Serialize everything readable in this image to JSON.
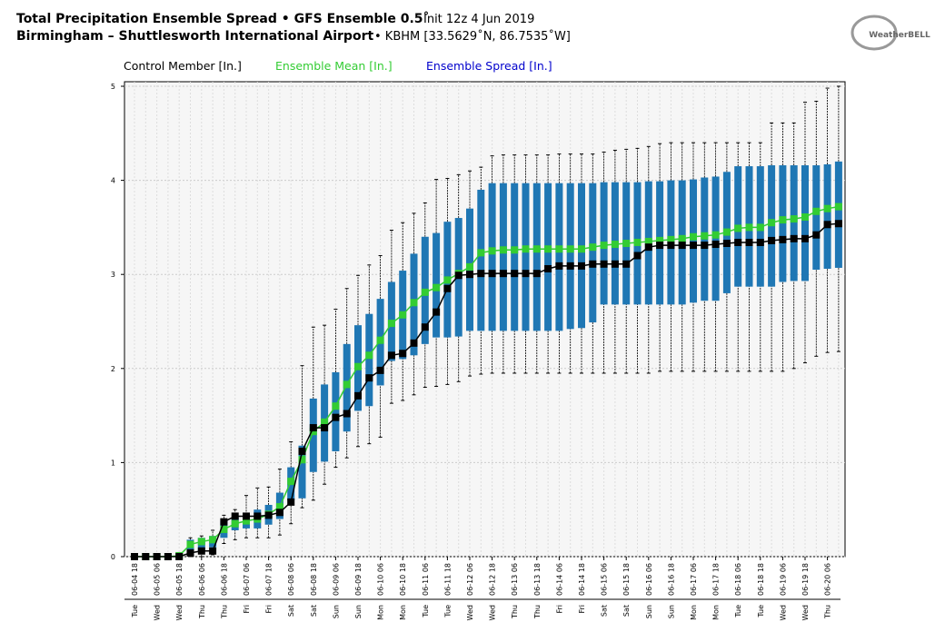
{
  "chart_data": {
    "type": "box",
    "title": "Total Precipitation Ensemble Spread • GFS Ensemble 0.5˚",
    "title_note": "Init 12z 4 Jun 2019",
    "subtitle": "Birmingham – Shuttlesworth International Airport",
    "subtitle_note": "• KBHM [33.5629˚N, 86.7535˚W]",
    "logo": "WeatherBELL",
    "categories": [
      "06-04 18",
      null,
      "06-05 06",
      null,
      "06-05 18",
      null,
      "06-06 06",
      null,
      "06-06 18",
      null,
      "06-07 06",
      null,
      "06-07 18",
      null,
      "06-08 06",
      null,
      "06-08 18",
      null,
      "06-09 06",
      null,
      "06-09 18",
      null,
      "06-10 06",
      null,
      "06-10 18",
      null,
      "06-11 06",
      null,
      "06-11 18",
      null,
      "06-12 06",
      null,
      "06-12 18",
      null,
      "06-13 06",
      null,
      "06-13 18",
      null,
      "06-14 06",
      null,
      "06-14 18",
      null,
      "06-15 06",
      null,
      "06-15 18",
      null,
      "06-16 06",
      null,
      "06-16 18",
      null,
      "06-17 06",
      null,
      "06-17 18",
      null,
      "06-18 06",
      null,
      "06-18 18",
      null,
      "06-19 06",
      null,
      "06-19 18",
      null,
      "06-20 06",
      null
    ],
    "weekdays": [
      "Tue",
      null,
      "Wed",
      null,
      "Wed",
      null,
      "Thu",
      null,
      "Thu",
      null,
      "Fri",
      null,
      "Fri",
      null,
      "Sat",
      null,
      "Sat",
      null,
      "Sun",
      null,
      "Sun",
      null,
      "Mon",
      null,
      "Mon",
      null,
      "Tue",
      null,
      "Tue",
      null,
      "Wed",
      null,
      "Wed",
      null,
      "Thu",
      null,
      "Thu",
      null,
      "Fri",
      null,
      "Fri",
      null,
      "Sat",
      null,
      "Sat",
      null,
      "Sun",
      null,
      "Sun",
      null,
      "Mon",
      null,
      "Mon",
      null,
      "Tue",
      null,
      "Tue",
      null,
      "Wed",
      null,
      "Wed",
      null,
      "Thu",
      null
    ],
    "ylim": [
      0,
      5
    ],
    "yticks": [
      0,
      1,
      2,
      3,
      4,
      5
    ],
    "grid": true,
    "series": [
      {
        "name": "Control Member [In.]",
        "color": "#000000",
        "kind": "line",
        "values": [
          0,
          0,
          0,
          0,
          0,
          0.04,
          0.06,
          0.06,
          0.37,
          0.43,
          0.43,
          0.43,
          0.44,
          0.47,
          0.58,
          1.12,
          1.37,
          1.37,
          1.48,
          1.52,
          1.71,
          1.9,
          1.98,
          2.14,
          2.16,
          2.27,
          2.44,
          2.6,
          2.85,
          2.99,
          3.0,
          3.01,
          3.01,
          3.01,
          3.01,
          3.01,
          3.01,
          3.06,
          3.09,
          3.09,
          3.09,
          3.11,
          3.11,
          3.11,
          3.11,
          3.2,
          3.29,
          3.31,
          3.31,
          3.31,
          3.31,
          3.31,
          3.32,
          3.33,
          3.34,
          3.34,
          3.34,
          3.36,
          3.37,
          3.38,
          3.38,
          3.42,
          3.53,
          3.54
        ]
      },
      {
        "name": "Ensemble Mean [In.]",
        "color": "#33cc33",
        "kind": "line",
        "values": [
          0,
          0,
          0,
          0,
          0.01,
          0.13,
          0.16,
          0.18,
          0.29,
          0.35,
          0.38,
          0.4,
          0.45,
          0.53,
          0.8,
          1.03,
          1.33,
          1.43,
          1.6,
          1.83,
          2.02,
          2.14,
          2.3,
          2.48,
          2.57,
          2.7,
          2.81,
          2.86,
          2.94,
          3.01,
          3.08,
          3.23,
          3.25,
          3.26,
          3.26,
          3.27,
          3.27,
          3.27,
          3.27,
          3.27,
          3.27,
          3.29,
          3.31,
          3.32,
          3.33,
          3.34,
          3.35,
          3.36,
          3.37,
          3.38,
          3.4,
          3.41,
          3.42,
          3.45,
          3.49,
          3.5,
          3.5,
          3.55,
          3.58,
          3.59,
          3.61,
          3.67,
          3.7,
          3.72
        ]
      },
      {
        "name": "Ensemble Spread [In.]",
        "color": "#1f77b4",
        "label_color": "#0000cc",
        "kind": "box",
        "low": [
          0,
          0,
          0,
          0,
          0,
          0,
          0,
          0.02,
          0.14,
          0.18,
          0.2,
          0.2,
          0.2,
          0.23,
          0.35,
          0.52,
          0.6,
          0.77,
          0.95,
          1.05,
          1.17,
          1.2,
          1.27,
          1.63,
          1.66,
          1.72,
          1.8,
          1.81,
          1.83,
          1.86,
          1.92,
          1.94,
          1.95,
          1.95,
          1.95,
          1.95,
          1.95,
          1.95,
          1.95,
          1.95,
          1.95,
          1.95,
          1.95,
          1.95,
          1.95,
          1.95,
          1.95,
          1.97,
          1.97,
          1.97,
          1.97,
          1.97,
          1.97,
          1.97,
          1.97,
          1.97,
          1.97,
          1.97,
          1.97,
          2.0,
          2.06,
          2.13,
          2.17,
          2.18
        ],
        "q1": [
          0,
          0,
          0,
          0,
          0,
          0.02,
          0.05,
          0.1,
          0.2,
          0.28,
          0.3,
          0.3,
          0.34,
          0.4,
          0.6,
          0.62,
          0.9,
          1.01,
          1.12,
          1.33,
          1.55,
          1.6,
          1.82,
          2.08,
          2.1,
          2.14,
          2.26,
          2.33,
          2.33,
          2.34,
          2.4,
          2.4,
          2.4,
          2.4,
          2.4,
          2.4,
          2.4,
          2.4,
          2.4,
          2.42,
          2.43,
          2.49,
          2.68,
          2.68,
          2.68,
          2.68,
          2.68,
          2.68,
          2.68,
          2.68,
          2.7,
          2.72,
          2.72,
          2.8,
          2.87,
          2.87,
          2.87,
          2.87,
          2.92,
          2.93,
          2.93,
          3.05,
          3.06,
          3.07
        ],
        "q3": [
          0,
          0,
          0,
          0,
          0.01,
          0.18,
          0.2,
          0.22,
          0.38,
          0.42,
          0.45,
          0.5,
          0.55,
          0.68,
          0.95,
          1.18,
          1.68,
          1.83,
          1.96,
          2.26,
          2.46,
          2.58,
          2.74,
          2.92,
          3.04,
          3.22,
          3.4,
          3.44,
          3.56,
          3.6,
          3.7,
          3.9,
          3.97,
          3.97,
          3.97,
          3.97,
          3.97,
          3.97,
          3.97,
          3.97,
          3.97,
          3.97,
          3.98,
          3.98,
          3.98,
          3.98,
          3.99,
          3.99,
          4.0,
          4.0,
          4.01,
          4.03,
          4.04,
          4.09,
          4.15,
          4.15,
          4.15,
          4.16,
          4.16,
          4.16,
          4.16,
          4.16,
          4.17,
          4.2
        ],
        "high": [
          0,
          0,
          0,
          0,
          0.02,
          0.2,
          0.22,
          0.28,
          0.44,
          0.5,
          0.65,
          0.73,
          0.74,
          0.93,
          1.22,
          2.03,
          2.44,
          2.46,
          2.63,
          2.85,
          2.99,
          3.1,
          3.2,
          3.47,
          3.55,
          3.65,
          3.76,
          4.01,
          4.02,
          4.06,
          4.1,
          4.14,
          4.26,
          4.27,
          4.27,
          4.27,
          4.27,
          4.27,
          4.28,
          4.28,
          4.28,
          4.28,
          4.3,
          4.32,
          4.33,
          4.34,
          4.36,
          4.39,
          4.4,
          4.4,
          4.4,
          4.4,
          4.4,
          4.4,
          4.4,
          4.4,
          4.4,
          4.61,
          4.61,
          4.61,
          4.83,
          4.84,
          4.98,
          5.0
        ]
      }
    ]
  }
}
